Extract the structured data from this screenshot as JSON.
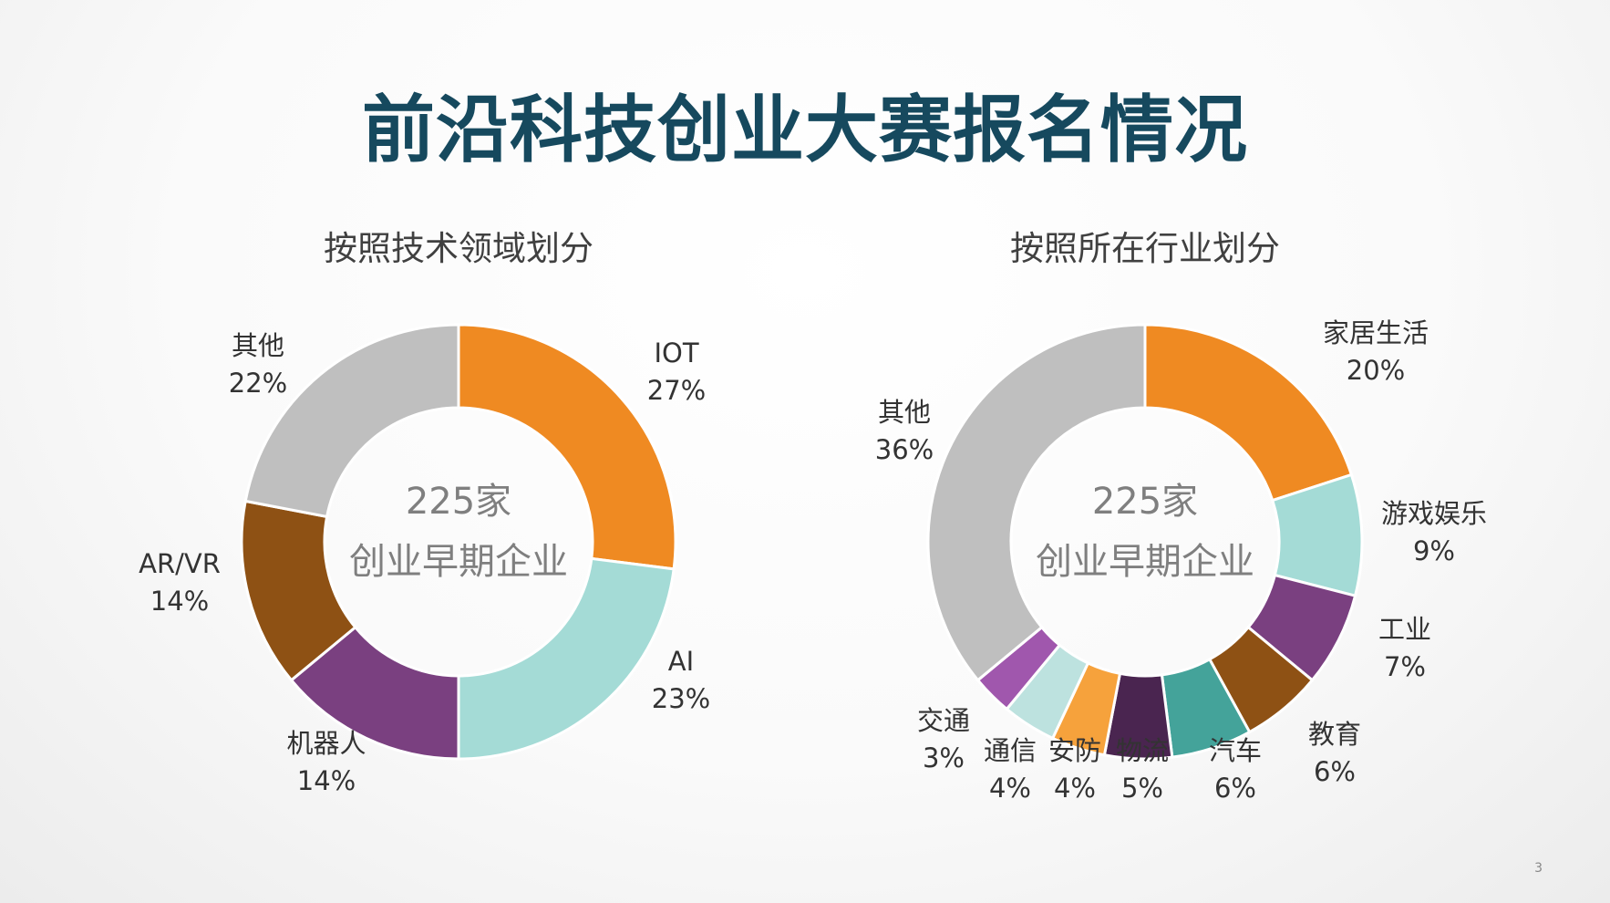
{
  "title": "前沿科技创业大赛报名情况",
  "page_number": "3",
  "chart_data": [
    {
      "type": "pie",
      "title": "按照技术领域划分",
      "center_line1": "225家",
      "center_line2": "创业早期企业",
      "slices": [
        {
          "label": "IOT",
          "pct_label": "27%",
          "value": 27,
          "color": "#ef8a22"
        },
        {
          "label": "AI",
          "pct_label": "23%",
          "value": 23,
          "color": "#a4dbd6"
        },
        {
          "label": "机器人",
          "pct_label": "14%",
          "value": 14,
          "color": "#7a4080"
        },
        {
          "label": "AR/VR",
          "pct_label": "14%",
          "value": 14,
          "color": "#8e5114"
        },
        {
          "label": "其他",
          "pct_label": "22%",
          "value": 22,
          "color": "#bfbfbf"
        }
      ]
    },
    {
      "type": "pie",
      "title": "按照所在行业划分",
      "center_line1": "225家",
      "center_line2": "创业早期企业",
      "slices": [
        {
          "label": "家居生活",
          "pct_label": "20%",
          "value": 20,
          "color": "#ef8a22"
        },
        {
          "label": "游戏娱乐",
          "pct_label": "9%",
          "value": 9,
          "color": "#a4dbd6"
        },
        {
          "label": "工业",
          "pct_label": "7%",
          "value": 7,
          "color": "#7a4080"
        },
        {
          "label": "教育",
          "pct_label": "6%",
          "value": 6,
          "color": "#8e5114"
        },
        {
          "label": "汽车",
          "pct_label": "6%",
          "value": 6,
          "color": "#44a39a"
        },
        {
          "label": "物流",
          "pct_label": "5%",
          "value": 5,
          "color": "#4a2550"
        },
        {
          "label": "安防",
          "pct_label": "4%",
          "value": 4,
          "color": "#f6a23c"
        },
        {
          "label": "通信",
          "pct_label": "4%",
          "value": 4,
          "color": "#bde2df"
        },
        {
          "label": "交通",
          "pct_label": "3%",
          "value": 3,
          "color": "#a057ad"
        },
        {
          "label": "其他",
          "pct_label": "36%",
          "value": 36,
          "color": "#bfbfbf"
        }
      ]
    }
  ]
}
